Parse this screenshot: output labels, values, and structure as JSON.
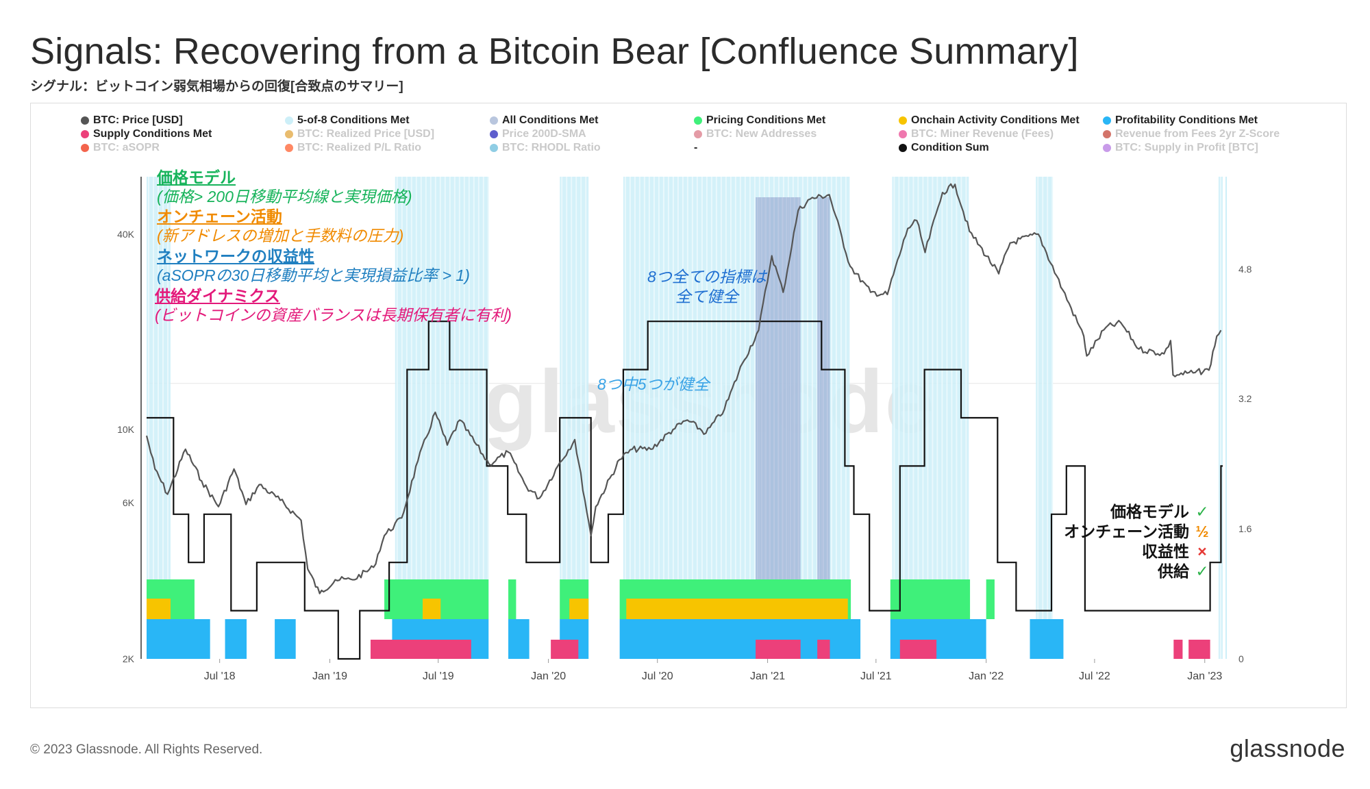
{
  "title": "Signals: Recovering from a Bitcoin Bear [Confluence Summary]",
  "subtitle": "シグナル：ビットコイン弱気相場からの回復[合致点のサマリー]",
  "footer": "© 2023 Glassnode. All Rights Reserved.",
  "brand": "glassnode",
  "watermark": "glassnode",
  "legend": [
    {
      "label": "BTC: Price [USD]",
      "color": "#555555",
      "active": true
    },
    {
      "label": "5-of-8 Conditions Met",
      "color": "#cdeff8",
      "active": true
    },
    {
      "label": "All Conditions Met",
      "color": "#b9c6de",
      "active": true
    },
    {
      "label": "Pricing Conditions Met",
      "color": "#3ff07a",
      "active": true
    },
    {
      "label": "Onchain Activity Conditions Met",
      "color": "#f7c400",
      "active": true
    },
    {
      "label": "Profitability Conditions Met",
      "color": "#29b6f6",
      "active": true
    },
    {
      "label": "Supply Conditions Met",
      "color": "#ec407a",
      "active": true
    },
    {
      "label": "BTC: Realized Price [USD]",
      "color": "#e0a030",
      "active": false
    },
    {
      "label": "Price 200D-SMA",
      "color": "#1a1ab8",
      "active": false
    },
    {
      "label": "BTC: New Addresses",
      "color": "#d87080",
      "active": false
    },
    {
      "label": "BTC: Miner Revenue (Fees)",
      "color": "#e83e8c",
      "active": false
    },
    {
      "label": "Revenue from Fees 2yr Z-Score",
      "color": "#c0392b",
      "active": false
    },
    {
      "label": "BTC: aSOPR",
      "color": "#ee2200",
      "active": false
    },
    {
      "label": "BTC: Realized P/L Ratio",
      "color": "#ff5522",
      "active": false
    },
    {
      "label": "BTC: RHODL Ratio",
      "color": "#60b8d8",
      "active": false
    },
    {
      "label": "-",
      "color": "",
      "active": true
    },
    {
      "label": "Condition Sum",
      "color": "#111111",
      "active": true
    },
    {
      "label": "BTC: Supply in Profit [BTC]",
      "color": "#b070e0",
      "active": false
    }
  ],
  "annotations": [
    {
      "heading": "価格モデル",
      "detail": "(価格> 200日移動平均線と実現価格)",
      "color": "#16b35a"
    },
    {
      "heading": "オンチェーン活動",
      "detail": "(新アドレスの増加と手数料の圧力)",
      "color": "#f08a00"
    },
    {
      "heading": "ネットワークの収益性",
      "detail": "(aSOPRの30日移動平均と実現損益比率 > 1)",
      "color": "#1f7fc0"
    },
    {
      "heading": "供給ダイナミクス",
      "detail": "(ビットコインの資産バランスは長期保有者に有利)",
      "color": "#e3197a"
    }
  ],
  "notes": {
    "all": "8つ全ての指標は\n全て健全",
    "five": "8つ中5つが健全"
  },
  "status": [
    {
      "label": "価格モデル",
      "mark": "✓",
      "color": "#2db34a"
    },
    {
      "label": "オンチェーン活動",
      "mark": "½",
      "color": "#f08a00"
    },
    {
      "label": "収益性",
      "mark": "×",
      "color": "#e53935"
    },
    {
      "label": "供給",
      "mark": "✓",
      "color": "#2db34a"
    }
  ],
  "chart_data": {
    "type": "line",
    "x_ticks": [
      "Jul '18",
      "Jan '19",
      "Jul '19",
      "Jan '20",
      "Jul '20",
      "Jan '21",
      "Jul '21",
      "Jan '22",
      "Jul '22",
      "Jan '23"
    ],
    "y_left_ticks": [
      "2K",
      "6K",
      "10K",
      "40K"
    ],
    "y_left_scale": "log",
    "y_right_ticks": [
      "0",
      "1.6",
      "3.2",
      "4.8"
    ],
    "y_right_range": [
      0,
      8
    ],
    "x_range": [
      "2018-03-01",
      "2023-01-31"
    ],
    "price_series": {
      "name": "BTC: Price [USD]",
      "x": [
        "2018-03-01",
        "2018-03-15",
        "2018-04-05",
        "2018-05-05",
        "2018-06-01",
        "2018-06-29",
        "2018-07-25",
        "2018-08-14",
        "2018-09-05",
        "2018-10-10",
        "2018-11-14",
        "2018-11-25",
        "2018-12-15",
        "2019-01-10",
        "2019-02-08",
        "2019-03-15",
        "2019-04-02",
        "2019-05-01",
        "2019-05-28",
        "2019-06-26",
        "2019-07-16",
        "2019-08-06",
        "2019-09-24",
        "2019-10-26",
        "2019-11-25",
        "2019-12-17",
        "2020-01-20",
        "2020-02-14",
        "2020-03-12",
        "2020-03-20",
        "2020-04-29",
        "2020-05-20",
        "2020-06-20",
        "2020-07-27",
        "2020-08-20",
        "2020-09-20",
        "2020-10-21",
        "2020-11-20",
        "2020-12-17",
        "2021-01-08",
        "2021-01-27",
        "2021-02-21",
        "2021-03-13",
        "2021-04-14",
        "2021-05-19",
        "2021-06-22",
        "2021-07-20",
        "2021-08-23",
        "2021-09-07",
        "2021-09-21",
        "2021-10-20",
        "2021-11-10",
        "2021-12-04",
        "2022-01-22",
        "2022-02-10",
        "2022-03-29",
        "2022-05-09",
        "2022-06-13",
        "2022-06-18",
        "2022-07-20",
        "2022-08-14",
        "2022-09-13",
        "2022-10-25",
        "2022-11-05",
        "2022-11-09",
        "2022-12-16",
        "2023-01-08",
        "2023-01-21",
        "2023-01-28"
      ],
      "y": [
        10500,
        8200,
        6800,
        9500,
        7500,
        6200,
        8200,
        6300,
        7300,
        6500,
        5600,
        3900,
        3250,
        3600,
        3600,
        3950,
        5000,
        5700,
        8700,
        12500,
        9800,
        11800,
        8500,
        9300,
        7200,
        6600,
        8600,
        10200,
        5000,
        6200,
        8800,
        9500,
        9500,
        11000,
        11800,
        10700,
        12800,
        18000,
        23000,
        40000,
        30500,
        56000,
        61000,
        63000,
        37000,
        30500,
        30000,
        49000,
        52000,
        41000,
        64000,
        68000,
        48000,
        35000,
        44000,
        47000,
        31000,
        22000,
        19000,
        23500,
        24300,
        20000,
        19300,
        21300,
        16500,
        16800,
        17100,
        22000,
        23000
      ]
    },
    "condition_sum": {
      "name": "Condition Sum",
      "x": [
        "2018-03-01",
        "2018-04-15",
        "2018-05-10",
        "2018-06-05",
        "2018-07-20",
        "2018-09-01",
        "2018-10-15",
        "2018-11-20",
        "2019-01-15",
        "2019-02-20",
        "2019-03-25",
        "2019-04-10",
        "2019-05-10",
        "2019-06-15",
        "2019-07-20",
        "2019-08-25",
        "2019-09-20",
        "2019-10-25",
        "2019-11-25",
        "2019-12-20",
        "2020-01-20",
        "2020-02-15",
        "2020-03-12",
        "2020-04-10",
        "2020-05-05",
        "2020-06-15",
        "2020-08-01",
        "2020-10-01",
        "2020-12-01",
        "2021-02-01",
        "2021-04-01",
        "2021-05-10",
        "2021-05-25",
        "2021-06-20",
        "2021-07-20",
        "2021-08-10",
        "2021-09-20",
        "2021-10-20",
        "2021-11-20",
        "2021-12-20",
        "2022-01-20",
        "2022-02-20",
        "2022-03-25",
        "2022-04-20",
        "2022-05-15",
        "2022-06-15",
        "2022-08-15",
        "2022-10-20",
        "2022-11-20",
        "2023-01-10",
        "2023-01-28"
      ],
      "values": [
        5,
        3,
        2,
        3,
        1,
        2,
        2,
        1,
        0,
        1,
        1,
        2,
        6,
        7,
        6,
        6,
        4,
        3,
        2,
        2,
        5,
        5,
        2,
        3,
        6,
        7,
        7,
        7,
        7,
        7,
        6,
        4,
        3,
        1,
        1,
        4,
        6,
        6,
        5,
        5,
        2,
        1,
        1,
        3,
        4,
        1,
        1,
        1,
        1,
        2,
        4
      ]
    },
    "bands": [
      {
        "name": "Pricing Conditions Met",
        "color": "#3ff07a",
        "level": 2,
        "ranges": [
          [
            "2018-03-01",
            "2018-05-20"
          ],
          [
            "2019-04-02",
            "2019-09-23"
          ],
          [
            "2019-10-26",
            "2019-11-08"
          ],
          [
            "2020-01-20",
            "2020-03-08"
          ],
          [
            "2020-04-29",
            "2021-05-20"
          ],
          [
            "2021-07-25",
            "2021-12-05"
          ],
          [
            "2022-01-01",
            "2022-01-15"
          ]
        ]
      },
      {
        "name": "Onchain Activity Conditions Met",
        "color": "#f7c400",
        "level": 1,
        "ranges": [
          [
            "2018-03-01",
            "2018-04-10"
          ],
          [
            "2019-06-05",
            "2019-07-05"
          ],
          [
            "2020-02-05",
            "2020-03-08"
          ],
          [
            "2020-05-10",
            "2021-05-15"
          ]
        ]
      },
      {
        "name": "Profitability Conditions Met",
        "color": "#29b6f6",
        "level": 1,
        "ranges": [
          [
            "2018-03-01",
            "2018-06-15"
          ],
          [
            "2018-07-10",
            "2018-08-15"
          ],
          [
            "2018-10-01",
            "2018-11-05"
          ],
          [
            "2019-04-15",
            "2019-09-23"
          ],
          [
            "2019-10-26",
            "2019-11-30"
          ],
          [
            "2020-01-20",
            "2020-03-08"
          ],
          [
            "2020-04-29",
            "2021-06-05"
          ],
          [
            "2021-07-25",
            "2022-01-01"
          ],
          [
            "2022-03-15",
            "2022-05-10"
          ]
        ]
      },
      {
        "name": "Supply Conditions Met",
        "color": "#ec407a",
        "level": 0,
        "ranges": [
          [
            "2019-03-10",
            "2019-08-25"
          ],
          [
            "2020-01-05",
            "2020-02-20"
          ],
          [
            "2020-12-12",
            "2021-02-25"
          ],
          [
            "2021-03-25",
            "2021-04-15"
          ],
          [
            "2021-08-10",
            "2021-10-10"
          ],
          [
            "2022-11-10",
            "2022-11-25"
          ],
          [
            "2022-12-05",
            "2023-01-10"
          ]
        ]
      }
    ],
    "five_of_eight": [
      [
        "2018-03-01",
        "2018-04-10"
      ],
      [
        "2019-04-20",
        "2019-09-23"
      ],
      [
        "2020-01-20",
        "2020-03-08"
      ],
      [
        "2020-05-05",
        "2021-05-18"
      ],
      [
        "2021-07-28",
        "2021-12-03"
      ],
      [
        "2022-03-25",
        "2022-04-22"
      ],
      [
        "2023-01-24",
        "2023-01-31"
      ]
    ],
    "all_conditions": [
      [
        "2020-12-12",
        "2021-02-25"
      ],
      [
        "2021-03-25",
        "2021-04-15"
      ]
    ]
  }
}
